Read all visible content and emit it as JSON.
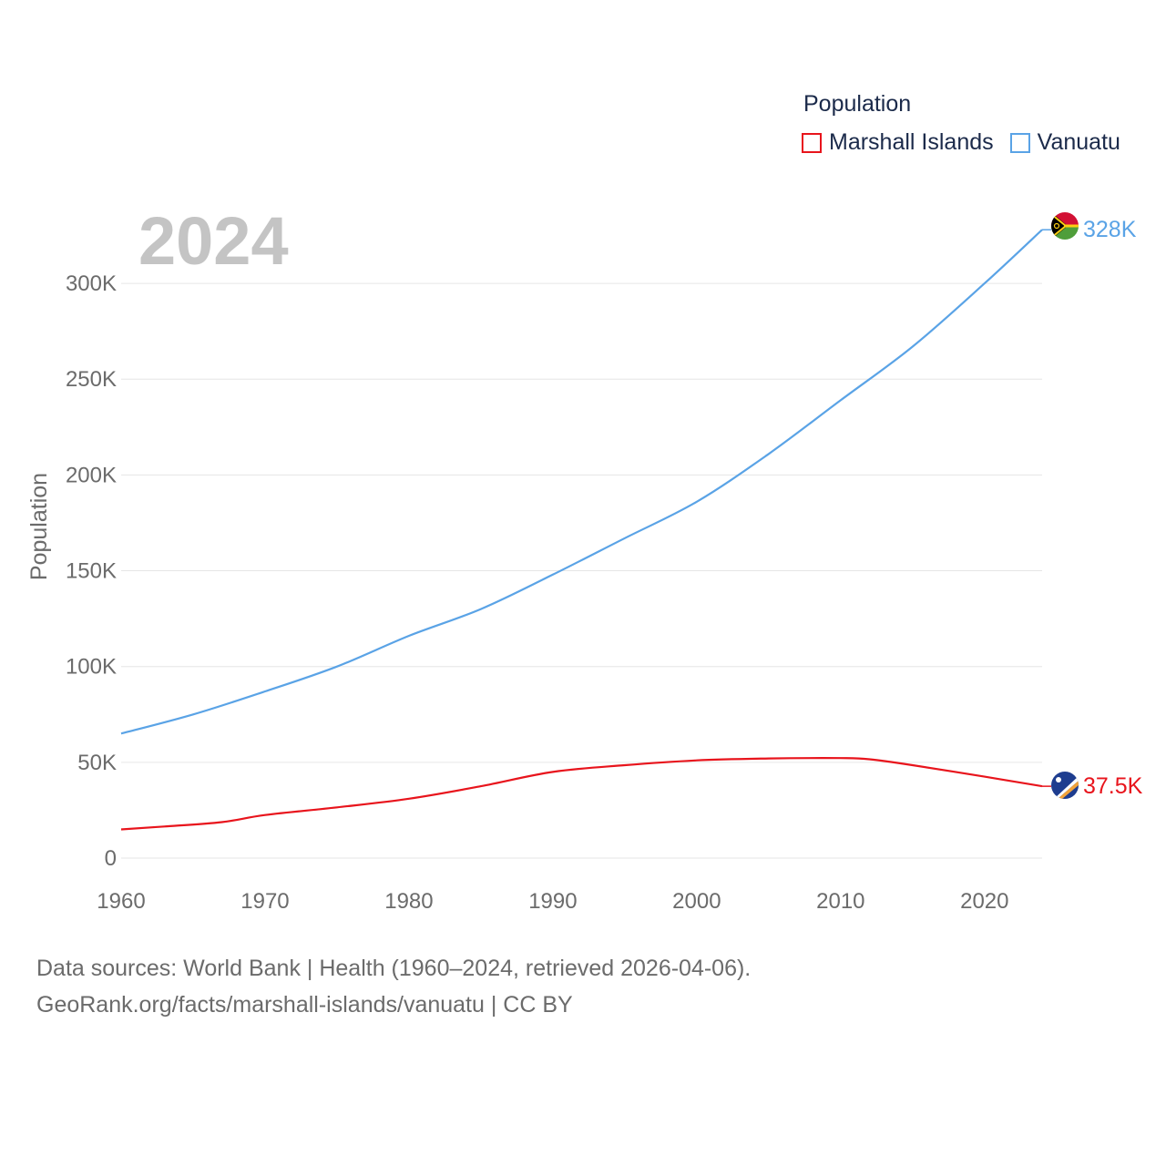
{
  "chart_data": {
    "type": "line",
    "year_label": "2024",
    "ylabel": "Population",
    "xlim": [
      1960,
      2024
    ],
    "ylim": [
      0,
      330000
    ],
    "x_ticks": [
      1960,
      1970,
      1980,
      1990,
      2000,
      2010,
      2020
    ],
    "x_tick_labels": [
      "1960",
      "1970",
      "1980",
      "1990",
      "2000",
      "2010",
      "2020"
    ],
    "y_ticks": [
      0,
      50000,
      100000,
      150000,
      200000,
      250000,
      300000
    ],
    "y_tick_labels": [
      "0",
      "50K",
      "100K",
      "150K",
      "200K",
      "250K",
      "300K"
    ],
    "grid": true,
    "legend": {
      "title": "Population",
      "position": "top-right"
    },
    "series": [
      {
        "name": "Marshall Islands",
        "color": "#e8141c",
        "end_label": "37.5K",
        "flag_icon": "marshall-islands-flag-icon",
        "x": [
          1960,
          1963,
          1967,
          1970,
          1975,
          1980,
          1985,
          1990,
          1995,
          2000,
          2005,
          2010,
          2012,
          2015,
          2020,
          2024
        ],
        "values": [
          15000,
          16500,
          18800,
          22500,
          26500,
          31000,
          37500,
          45000,
          48500,
          51000,
          52000,
          52200,
          51600,
          48500,
          42500,
          37500
        ]
      },
      {
        "name": "Vanuatu",
        "color": "#5aa3e6",
        "end_label": "328K",
        "flag_icon": "vanuatu-flag-icon",
        "x": [
          1960,
          1965,
          1970,
          1975,
          1980,
          1985,
          1990,
          1995,
          2000,
          2005,
          2010,
          2015,
          2020,
          2024
        ],
        "values": [
          65000,
          75000,
          87000,
          100000,
          116000,
          130000,
          148000,
          167000,
          186000,
          211000,
          239000,
          267000,
          300000,
          328000
        ]
      }
    ]
  },
  "footer": {
    "line1": "Data sources: World Bank | Health (1960–2024, retrieved 2026-04-06).",
    "line2": "GeoRank.org/facts/marshall-islands/vanuatu | CC BY"
  }
}
